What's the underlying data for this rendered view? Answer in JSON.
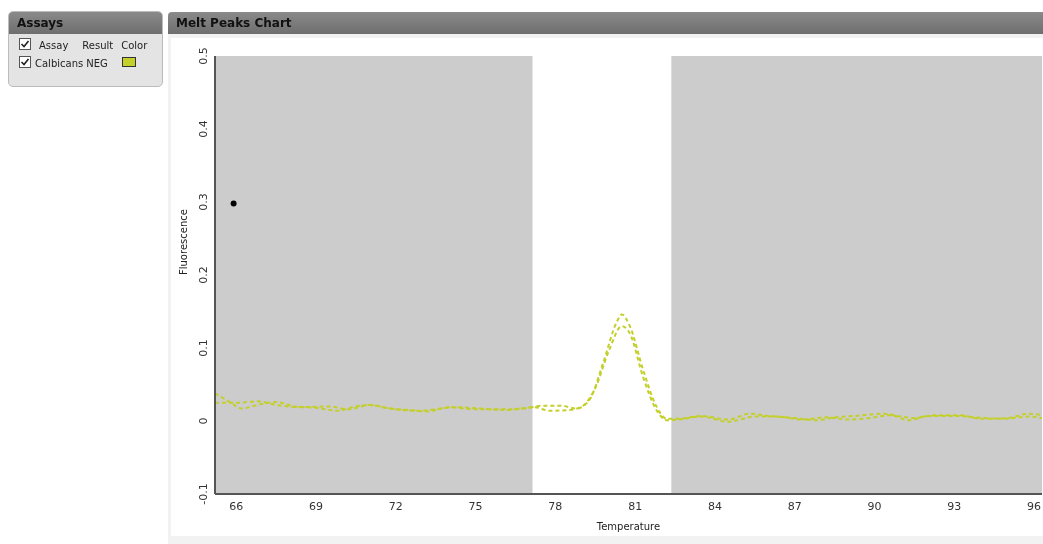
{
  "chart_data": {
    "type": "line",
    "title": "Melt Peaks Chart",
    "xlabel": "Temperature",
    "ylabel": "Fluorescence",
    "annotations": [
      "Assays",
      "Assay",
      "Result",
      "Color",
      "Calbicans",
      "NEG"
    ],
    "xlim": [
      65.2,
      96.3
    ],
    "xticks": [
      66,
      69,
      72,
      75,
      78,
      81,
      84,
      87,
      90,
      93,
      96
    ],
    "ylim": [
      -0.1,
      0.5
    ],
    "yticks": [
      -0.1,
      0,
      0.1,
      0.2,
      0.3,
      0.4,
      0.5
    ],
    "grid": false,
    "legend": false,
    "marker": "none",
    "line_style": "dashed",
    "bands": [
      {
        "axis": "x",
        "from": 65.2,
        "to": 77.14,
        "color": "#cccccc"
      },
      {
        "axis": "x",
        "from": 82.36,
        "to": 96.3,
        "color": "#cccccc"
      }
    ],
    "series": [
      {
        "color": "#c3cf2a",
        "x": [
          65.2,
          65.8,
          66.2,
          66.8,
          67.5,
          68.2,
          69,
          69.8,
          70.5,
          71,
          71.8,
          72.5,
          73.2,
          74,
          75,
          76,
          76.8,
          77.5,
          78.2,
          78.8,
          79.3,
          79.8,
          80.3,
          80.5,
          80.8,
          81.3,
          81.8,
          82.2,
          82.6,
          83.5,
          84.5,
          85.3,
          86,
          87,
          87.8,
          88.5,
          89.3,
          90.3,
          91,
          91.5,
          92.3,
          93.2,
          94,
          95,
          95.8,
          96.3
        ],
        "values": [
          0.038,
          0.025,
          0.017,
          0.022,
          0.026,
          0.02,
          0.018,
          0.014,
          0.02,
          0.022,
          0.017,
          0.015,
          0.013,
          0.019,
          0.016,
          0.016,
          0.017,
          0.021,
          0.021,
          0.017,
          0.03,
          0.08,
          0.135,
          0.146,
          0.13,
          0.07,
          0.02,
          0.003,
          0.003,
          0.007,
          0.002,
          0.01,
          0.007,
          0.004,
          0.001,
          0.005,
          0.007,
          0.01,
          0.006,
          0.004,
          0.008,
          0.008,
          0.003,
          0.004,
          0.01,
          0.008
        ]
      },
      {
        "color": "#c3cf2a",
        "x": [
          65.2,
          66,
          66.8,
          67.5,
          68.5,
          69.5,
          70.2,
          71,
          71.8,
          72.8,
          73.5,
          74.2,
          75.2,
          76.2,
          77.2,
          77.8,
          78.5,
          79,
          79.5,
          80,
          80.5,
          80.8,
          81.3,
          81.8,
          82.2,
          82.6,
          83.5,
          84.5,
          85.5,
          86.3,
          87.3,
          88.2,
          89,
          89.8,
          90.6,
          91.3,
          92,
          93,
          93.8,
          94.8,
          95.8,
          96.3
        ],
        "values": [
          0.025,
          0.025,
          0.027,
          0.022,
          0.019,
          0.02,
          0.016,
          0.022,
          0.017,
          0.014,
          0.016,
          0.019,
          0.017,
          0.015,
          0.019,
          0.014,
          0.015,
          0.02,
          0.045,
          0.095,
          0.13,
          0.12,
          0.06,
          0.015,
          0.001,
          0.002,
          0.006,
          -0.001,
          0.006,
          0.006,
          0.002,
          0.005,
          0.002,
          0.004,
          0.008,
          0.001,
          0.007,
          0.007,
          0.005,
          0.003,
          0.006,
          0.004
        ]
      },
      {
        "type": "scatter",
        "color": "#000000",
        "x": [
          65.9
        ],
        "values": [
          0.298
        ]
      }
    ]
  }
}
